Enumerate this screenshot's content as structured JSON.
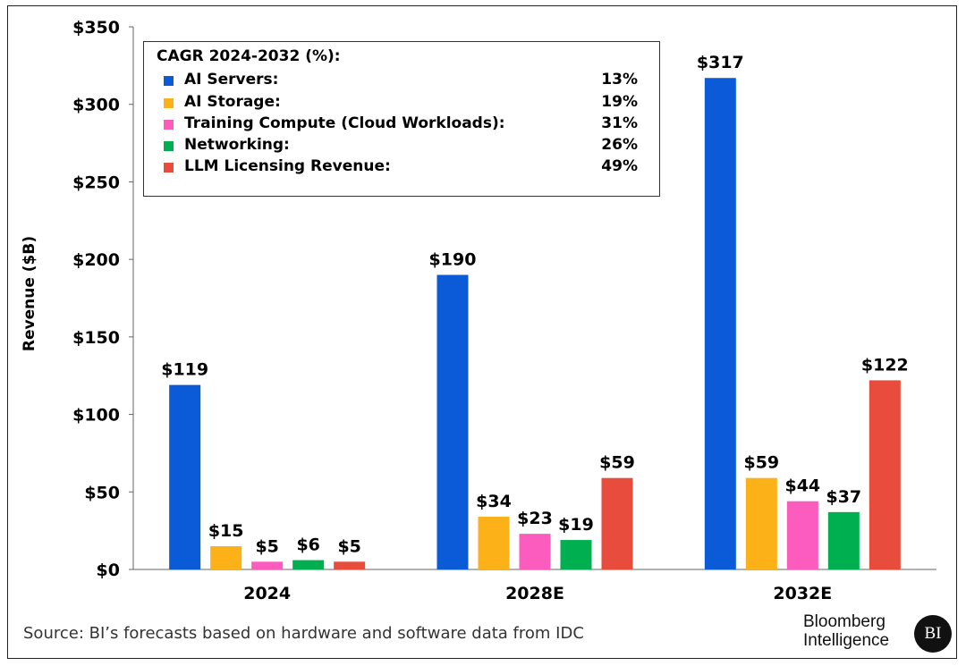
{
  "chart_data": {
    "type": "bar",
    "title": "",
    "xlabel": "",
    "ylabel": "Revenue ($B)",
    "ylim": [
      0,
      350
    ],
    "yticks": [
      0,
      50,
      100,
      150,
      200,
      250,
      300,
      350
    ],
    "ytick_labels": [
      "$0",
      "$50",
      "$100",
      "$150",
      "$200",
      "$250",
      "$300",
      "$350"
    ],
    "categories": [
      "2024",
      "2028E",
      "2032E"
    ],
    "series": [
      {
        "name": "AI Servers",
        "color": "#0b5bd8",
        "values": [
          119,
          190,
          317
        ],
        "labels": [
          "$119",
          "$190",
          "$317"
        ]
      },
      {
        "name": "AI Storage",
        "color": "#fbb117",
        "values": [
          15,
          34,
          59
        ],
        "labels": [
          "$15",
          "$34",
          "$59"
        ]
      },
      {
        "name": "Training Compute (Cloud Workloads)",
        "color": "#fd5cbf",
        "values": [
          5,
          23,
          44
        ],
        "labels": [
          "$5",
          "$23",
          "$44"
        ]
      },
      {
        "name": "Networking",
        "color": "#00b050",
        "values": [
          6,
          19,
          37
        ],
        "labels": [
          "$6",
          "$19",
          "$37"
        ]
      },
      {
        "name": "LLM Licensing Revenue",
        "color": "#e84c3d",
        "values": [
          5,
          59,
          122
        ],
        "labels": [
          "$5",
          "$59",
          "$122"
        ]
      }
    ],
    "legend": {
      "title": "CAGR 2024-2032 (%):",
      "placement": "top-left",
      "items": [
        {
          "label": "AI Servers:",
          "value": "13%"
        },
        {
          "label": "AI Storage:",
          "value": "19%"
        },
        {
          "label": "Training Compute (Cloud Workloads):",
          "value": "31%"
        },
        {
          "label": "Networking:",
          "value": "26%"
        },
        {
          "label": "LLM Licensing Revenue:",
          "value": "49%"
        }
      ]
    }
  },
  "footer": {
    "source": "Source: BI’s forecasts based on hardware and software data from IDC",
    "brand_line1": "Bloomberg",
    "brand_line2": "Intelligence",
    "brand_mark": "BI"
  }
}
